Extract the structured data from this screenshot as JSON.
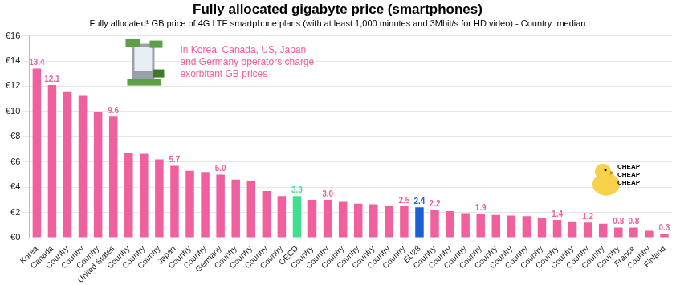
{
  "chart_data": {
    "type": "bar",
    "title": "Fully allocated gigabyte price (smartphones)",
    "subtitle": "Fully allocated¹ GB price of 4G LTE smartphone plans (with at least 1,000 minutes and 3Mbit/s for HD video) - Country  median",
    "categories": [
      "Korea",
      "Canada",
      "Country",
      "Country",
      "Country",
      "United States",
      "Country",
      "Country",
      "Country",
      "Japan",
      "Country",
      "Country",
      "Germany",
      "Country",
      "Country",
      "Country",
      "Country",
      "OECD",
      "Country",
      "Country",
      "Country",
      "Country",
      "Country",
      "Country",
      "Country",
      "EU28",
      "Country",
      "Country",
      "Country",
      "Country",
      "Country",
      "Country",
      "Country",
      "Country",
      "Country",
      "Country",
      "Country",
      "Country",
      "Country",
      "France",
      "Country",
      "Finland"
    ],
    "values": [
      13.4,
      12.1,
      11.6,
      11.3,
      10.0,
      9.6,
      6.7,
      6.65,
      6.2,
      5.7,
      5.3,
      5.2,
      5.0,
      4.6,
      4.5,
      3.7,
      3.3,
      3.3,
      3.0,
      3.0,
      2.9,
      2.7,
      2.65,
      2.5,
      2.5,
      2.4,
      2.2,
      2.1,
      1.95,
      1.9,
      1.8,
      1.75,
      1.7,
      1.55,
      1.4,
      1.3,
      1.2,
      1.1,
      0.8,
      0.8,
      0.55,
      0.3
    ],
    "value_labels": [
      "13.4",
      "12.1",
      null,
      null,
      null,
      "9.6",
      null,
      null,
      null,
      "5.7",
      null,
      null,
      "5.0",
      null,
      null,
      null,
      null,
      "3.3",
      null,
      "3.0",
      null,
      null,
      null,
      null,
      "2.5",
      "2.4",
      "2.2",
      null,
      null,
      "1.9",
      null,
      null,
      null,
      null,
      "1.4",
      null,
      "1.2",
      null,
      "0.8",
      "0.8",
      null,
      "0.3"
    ],
    "colors": [
      "#f0609e",
      "#f0609e",
      "#f0609e",
      "#f0609e",
      "#f0609e",
      "#f0609e",
      "#f0609e",
      "#f0609e",
      "#f0609e",
      "#f0609e",
      "#f0609e",
      "#f0609e",
      "#f0609e",
      "#f0609e",
      "#f0609e",
      "#f0609e",
      "#f0609e",
      "#3ee08f",
      "#f0609e",
      "#f0609e",
      "#f0609e",
      "#f0609e",
      "#f0609e",
      "#f0609e",
      "#f0609e",
      "#1c5fd4",
      "#f0609e",
      "#f0609e",
      "#f0609e",
      "#f0609e",
      "#f0609e",
      "#f0609e",
      "#f0609e",
      "#f0609e",
      "#f0609e",
      "#f0609e",
      "#f0609e",
      "#f0609e",
      "#f0609e",
      "#f0609e",
      "#f0609e",
      "#f0609e"
    ],
    "ylim": [
      0,
      16
    ],
    "yticks": [
      {
        "value": 0,
        "label": "€0"
      },
      {
        "value": 2,
        "label": "€2"
      },
      {
        "value": 4,
        "label": "€4"
      },
      {
        "value": 6,
        "label": "€6"
      },
      {
        "value": 8,
        "label": "€8"
      },
      {
        "value": 10,
        "label": "€10"
      },
      {
        "value": 12,
        "label": "€12"
      },
      {
        "value": 14,
        "label": "€14"
      },
      {
        "value": 16,
        "label": "€16"
      }
    ],
    "grid": true,
    "data_labels": true,
    "annotations": [
      {
        "text": [
          "In Korea, Canada, US, Japan",
          "and Germany operators charge",
          "exorbitant GB prices"
        ],
        "color": "#f0609e"
      },
      {
        "text": [
          "CHEAP",
          "CHEAP",
          "CHEAP"
        ]
      }
    ]
  }
}
